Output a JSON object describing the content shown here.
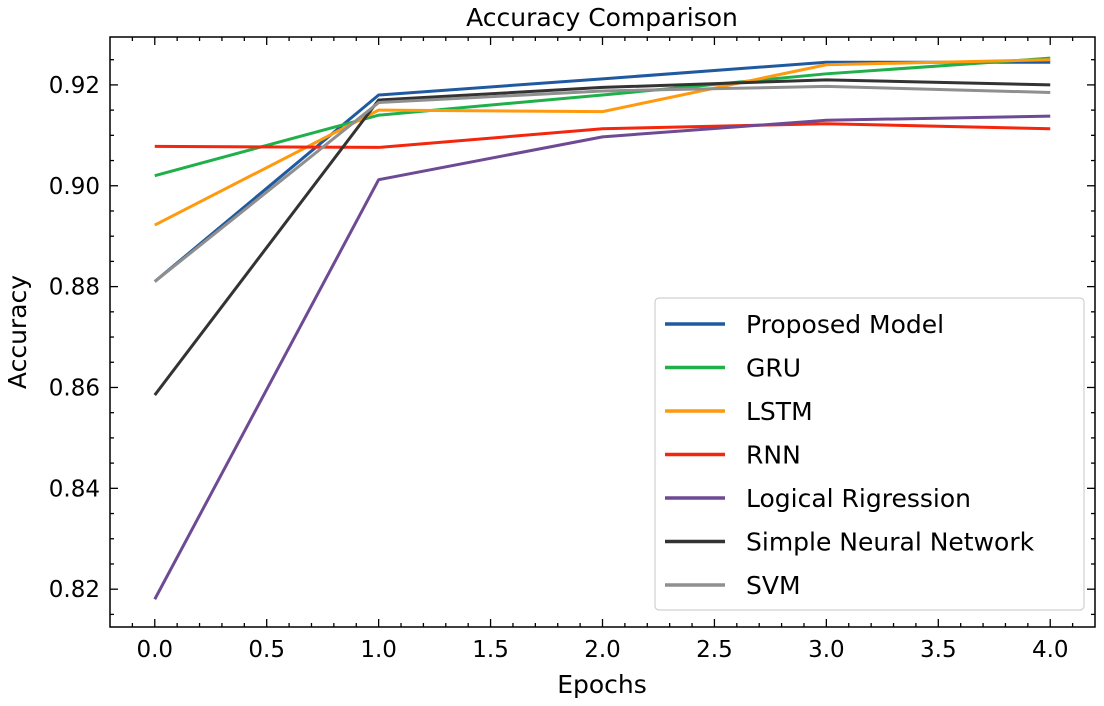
{
  "chart_data": {
    "type": "line",
    "title": "Accuracy Comparison",
    "xlabel": "Epochs",
    "ylabel": "Accuracy",
    "xlim": [
      -0.2,
      4.2
    ],
    "ylim": [
      0.8125,
      0.9295
    ],
    "x": [
      0,
      1,
      2,
      3,
      4
    ],
    "xticks": [
      0.0,
      0.5,
      1.0,
      1.5,
      2.0,
      2.5,
      3.0,
      3.5,
      4.0
    ],
    "xtick_labels": [
      "0.0",
      "0.5",
      "1.0",
      "1.5",
      "2.0",
      "2.5",
      "3.0",
      "3.5",
      "4.0"
    ],
    "yticks": [
      0.82,
      0.84,
      0.86,
      0.88,
      0.9,
      0.92
    ],
    "ytick_labels": [
      "0.82",
      "0.84",
      "0.86",
      "0.88",
      "0.90",
      "0.92"
    ],
    "grid": false,
    "legend_position": "lower-right",
    "series": [
      {
        "name": "Proposed Model",
        "color": "#1f5aa0",
        "values": [
          0.881,
          0.918,
          0.9212,
          0.9245,
          0.9245
        ]
      },
      {
        "name": "GRU",
        "color": "#1fb04a",
        "values": [
          0.902,
          0.914,
          0.918,
          0.9222,
          0.9253
        ]
      },
      {
        "name": "LSTM",
        "color": "#ff9a0f",
        "values": [
          0.8922,
          0.915,
          0.9147,
          0.924,
          0.925
        ]
      },
      {
        "name": "RNN",
        "color": "#f4260e",
        "values": [
          0.9078,
          0.9076,
          0.9113,
          0.9123,
          0.9113
        ]
      },
      {
        "name": "Logical Rigression",
        "color": "#6e4a94",
        "values": [
          0.818,
          0.9012,
          0.9097,
          0.913,
          0.9138
        ]
      },
      {
        "name": "Simple Neural Network",
        "color": "#333333",
        "values": [
          0.8585,
          0.917,
          0.9195,
          0.921,
          0.92
        ]
      },
      {
        "name": "SVM",
        "color": "#8f8f8f",
        "values": [
          0.881,
          0.9165,
          0.9188,
          0.9197,
          0.9185
        ]
      }
    ]
  }
}
